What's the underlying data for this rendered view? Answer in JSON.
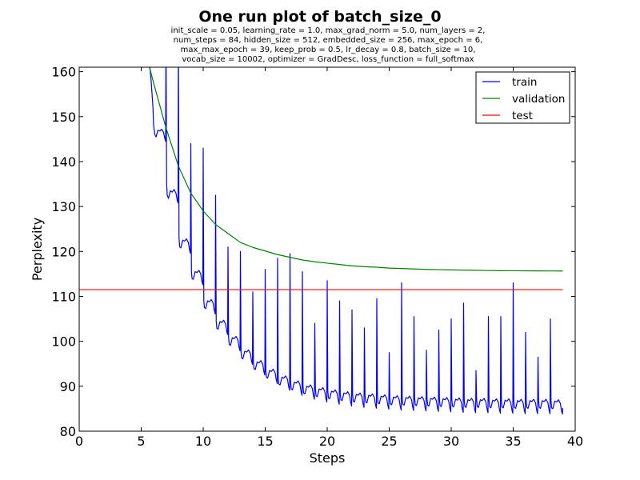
{
  "chart_data": {
    "type": "line",
    "title": "One run plot of batch_size_0",
    "subtitle_lines": [
      "init_scale = 0.05, learning_rate = 1.0, max_grad_norm = 5.0, num_layers = 2,",
      "num_steps = 84, hidden_size = 512, embedded_size = 256, max_epoch = 6,",
      "max_max_epoch = 39, keep_prob = 0.5, lr_decay = 0.8, batch_size = 10,",
      "vocab_size = 10002, optimizer = GradDesc, loss_function = full_softmax"
    ],
    "xlabel": "Steps",
    "ylabel": "Perplexity",
    "xlim": [
      0,
      40
    ],
    "ylim": [
      80,
      161
    ],
    "xticks": [
      0,
      5,
      10,
      15,
      20,
      25,
      30,
      35,
      40
    ],
    "yticks": [
      80,
      90,
      100,
      110,
      120,
      130,
      140,
      150,
      160
    ],
    "grid": false,
    "legend_position": "top-right",
    "series": [
      {
        "name": "train",
        "color": "#0000ff",
        "x": [
          5.4,
          5.6,
          5.8,
          5.95,
          6.0,
          6.1,
          6.2,
          6.35,
          6.5,
          6.65,
          6.8,
          6.9,
          6.97,
          7.0,
          7.05,
          7.1,
          7.2,
          7.35,
          7.5,
          7.65,
          7.8,
          7.9,
          7.97,
          8.0,
          8.05,
          8.1,
          8.2,
          8.35,
          8.5,
          8.65,
          8.8,
          8.9,
          8.97,
          9.0,
          9.05,
          9.1,
          9.2,
          9.35,
          9.5,
          9.65,
          9.8,
          9.9,
          9.97,
          10.0,
          10.05,
          10.1,
          10.2,
          10.35,
          10.5,
          10.65,
          10.8,
          10.9,
          10.97,
          11.0,
          11.05,
          11.1,
          11.2,
          11.35,
          11.5,
          11.65,
          11.8,
          11.9,
          11.97,
          12.0,
          12.05,
          12.1,
          12.2,
          12.35,
          12.5,
          12.65,
          12.8,
          12.9,
          12.97,
          13.0,
          13.05,
          13.1,
          13.2,
          13.35,
          13.5,
          13.65,
          13.8,
          13.9,
          13.97,
          14.0,
          14.05,
          14.1,
          14.2,
          14.35,
          14.5,
          14.65,
          14.8,
          14.9,
          14.97,
          15.0,
          15.05,
          15.1,
          15.2,
          15.35,
          15.5,
          15.65,
          15.8,
          15.9,
          15.97,
          16.0,
          16.05,
          16.1,
          16.2,
          16.35,
          16.5,
          16.65,
          16.8,
          16.9,
          16.97,
          17.0,
          17.05,
          17.1,
          17.2,
          17.35,
          17.5,
          17.65,
          17.8,
          17.9,
          17.97,
          18.0,
          18.05,
          18.1,
          18.2,
          18.35,
          18.5,
          18.65,
          18.8,
          18.9,
          18.97,
          19.0,
          19.05,
          19.1,
          19.2,
          19.35,
          19.5,
          19.65,
          19.8,
          19.9,
          19.97,
          20.0,
          20.05,
          20.1,
          20.2,
          20.35,
          20.5,
          20.65,
          20.8,
          20.9,
          20.97,
          21.0,
          21.05,
          21.1,
          21.2,
          21.35,
          21.5,
          21.65,
          21.8,
          21.9,
          21.97,
          22.0,
          22.05,
          22.1,
          22.2,
          22.35,
          22.5,
          22.65,
          22.8,
          22.9,
          22.97,
          23.0,
          23.05,
          23.1,
          23.2,
          23.35,
          23.5,
          23.65,
          23.8,
          23.9,
          23.97,
          24.0,
          24.05,
          24.1,
          24.2,
          24.35,
          24.5,
          24.65,
          24.8,
          24.9,
          24.97,
          25.0,
          25.05,
          25.1,
          25.2,
          25.35,
          25.5,
          25.65,
          25.8,
          25.9,
          25.97,
          26.0,
          26.05,
          26.1,
          26.2,
          26.35,
          26.5,
          26.65,
          26.8,
          26.9,
          26.97,
          27.0,
          27.05,
          27.1,
          27.2,
          27.35,
          27.5,
          27.65,
          27.8,
          27.9,
          27.97,
          28.0,
          28.05,
          28.1,
          28.2,
          28.35,
          28.5,
          28.65,
          28.8,
          28.9,
          28.97,
          29.0,
          29.05,
          29.1,
          29.2,
          29.35,
          29.5,
          29.65,
          29.8,
          29.9,
          29.97,
          30.0,
          30.05,
          30.1,
          30.2,
          30.35,
          30.5,
          30.65,
          30.8,
          30.9,
          30.97,
          31.0,
          31.05,
          31.1,
          31.2,
          31.35,
          31.5,
          31.65,
          31.8,
          31.9,
          31.97,
          32.0,
          32.05,
          32.1,
          32.2,
          32.35,
          32.5,
          32.65,
          32.8,
          32.9,
          32.97,
          33.0,
          33.05,
          33.1,
          33.2,
          33.35,
          33.5,
          33.65,
          33.8,
          33.9,
          33.97,
          34.0,
          34.05,
          34.1,
          34.2,
          34.35,
          34.5,
          34.65,
          34.8,
          34.9,
          34.97,
          35.0,
          35.05,
          35.1,
          35.2,
          35.35,
          35.5,
          35.65,
          35.8,
          35.9,
          35.97,
          36.0,
          36.05,
          36.1,
          36.2,
          36.35,
          36.5,
          36.65,
          36.8,
          36.9,
          36.97,
          37.0,
          37.05,
          37.1,
          37.2,
          37.35,
          37.5,
          37.65,
          37.8,
          37.9,
          37.97,
          38.0,
          38.05,
          38.1,
          38.2,
          38.35,
          38.5,
          38.65,
          38.8,
          38.9,
          38.97,
          39.0
        ],
        "y": [
          168,
          164,
          158,
          152,
          148,
          146.0,
          145.5,
          147.0,
          146.8,
          147.2,
          146.5,
          145.2,
          144.5,
          168,
          135,
          132.5,
          131.8,
          133.5,
          133.2,
          133.8,
          133.0,
          131.5,
          130.8,
          168,
          123,
          121.0,
          120.8,
          122.5,
          122.3,
          122.8,
          122.0,
          120.3,
          119.6,
          144,
          115.5,
          114.0,
          113.8,
          115.5,
          115.3,
          115.8,
          115.0,
          113.3,
          112.6,
          143,
          109.0,
          107.5,
          107.3,
          109.0,
          108.8,
          109.3,
          108.5,
          106.8,
          106.1,
          132.5,
          104.4,
          102.9,
          102.7,
          104.4,
          104.2,
          104.7,
          103.9,
          102.2,
          101.5,
          121,
          100.8,
          99.3,
          99.1,
          100.8,
          100.6,
          101.1,
          100.3,
          98.6,
          97.9,
          120,
          97.8,
          96.3,
          96.1,
          97.8,
          97.6,
          98.1,
          97.3,
          95.6,
          94.9,
          111,
          95.4,
          93.9,
          93.7,
          95.4,
          95.2,
          95.7,
          94.9,
          93.2,
          92.5,
          116,
          93.5,
          92.0,
          91.8,
          93.5,
          93.3,
          93.8,
          93.0,
          91.3,
          90.6,
          118.5,
          92.0,
          90.5,
          90.3,
          92.0,
          91.8,
          92.3,
          91.5,
          89.8,
          89.1,
          119.5,
          90.9,
          89.4,
          89.2,
          90.9,
          90.7,
          91.2,
          90.4,
          88.7,
          88.0,
          115.5,
          90.0,
          88.5,
          88.3,
          90.0,
          89.8,
          90.3,
          89.5,
          87.8,
          87.1,
          104,
          89.4,
          87.9,
          87.7,
          89.4,
          89.2,
          89.7,
          88.9,
          87.2,
          86.5,
          113.5,
          88.9,
          87.4,
          87.2,
          88.9,
          88.7,
          89.2,
          88.4,
          86.7,
          86.0,
          109,
          88.5,
          87.0,
          86.8,
          88.5,
          88.3,
          88.8,
          88.0,
          86.3,
          85.6,
          107,
          88.2,
          86.7,
          86.5,
          88.2,
          88.0,
          88.5,
          87.7,
          86.0,
          85.3,
          103,
          88.0,
          86.5,
          86.3,
          88.0,
          87.8,
          88.3,
          87.5,
          85.8,
          85.1,
          109.5,
          87.8,
          86.3,
          86.1,
          87.8,
          87.6,
          88.1,
          87.3,
          85.6,
          84.9,
          97.5,
          87.6,
          86.1,
          85.9,
          87.6,
          87.4,
          87.9,
          87.1,
          85.4,
          84.7,
          113,
          87.5,
          86.0,
          85.8,
          87.5,
          87.3,
          87.8,
          87.0,
          85.3,
          84.6,
          105.5,
          87.4,
          85.9,
          85.7,
          87.4,
          87.2,
          87.7,
          86.9,
          85.2,
          84.5,
          98,
          87.3,
          85.8,
          85.6,
          87.3,
          87.1,
          87.6,
          86.8,
          85.1,
          84.4,
          102.5,
          87.2,
          85.7,
          85.5,
          87.2,
          87.0,
          87.5,
          86.7,
          85.0,
          84.3,
          105,
          87.1,
          85.6,
          85.4,
          87.1,
          86.9,
          87.4,
          86.6,
          84.9,
          84.2,
          108.5,
          87.0,
          85.5,
          85.3,
          87.0,
          86.8,
          87.3,
          86.5,
          84.8,
          84.1,
          93.5,
          87.0,
          85.5,
          85.3,
          87.0,
          86.8,
          87.3,
          86.5,
          84.8,
          84.1,
          105.5,
          86.9,
          85.4,
          85.2,
          86.9,
          86.7,
          87.2,
          86.4,
          84.7,
          84.0,
          105.5,
          86.9,
          85.4,
          85.2,
          86.9,
          86.7,
          87.2,
          86.4,
          84.7,
          84.0,
          113,
          86.8,
          85.3,
          85.1,
          86.8,
          86.6,
          87.1,
          86.3,
          84.6,
          83.9,
          102,
          86.8,
          85.3,
          85.1,
          86.8,
          86.6,
          87.1,
          86.3,
          84.6,
          83.9,
          96.5,
          86.8,
          85.3,
          85.1,
          86.8,
          86.6,
          87.1,
          86.3,
          84.6,
          83.9,
          105,
          86.7,
          85.2,
          85.0,
          86.7,
          86.5,
          87.0,
          86.2,
          84.5,
          83.8,
          85.2
        ]
      },
      {
        "name": "validation",
        "color": "#008000",
        "x": [
          5,
          6,
          7,
          8,
          9,
          10,
          11,
          12,
          13,
          14,
          15,
          16,
          17,
          18,
          19,
          20,
          21,
          22,
          23,
          24,
          25,
          26,
          27,
          28,
          29,
          30,
          31,
          32,
          33,
          34,
          35,
          36,
          37,
          38,
          39
        ],
        "y": [
          168,
          157.5,
          147.5,
          139,
          133,
          129,
          126,
          124,
          122,
          120.9,
          120.1,
          119.3,
          118.7,
          118.1,
          117.7,
          117.4,
          117.1,
          116.8,
          116.6,
          116.5,
          116.3,
          116.2,
          116.1,
          116.0,
          115.95,
          115.9,
          115.85,
          115.8,
          115.75,
          115.72,
          115.7,
          115.68,
          115.67,
          115.66,
          115.65
        ]
      },
      {
        "name": "test",
        "color": "#ff0000",
        "x": [
          0,
          39
        ],
        "y": [
          111.5,
          111.5
        ]
      }
    ]
  }
}
